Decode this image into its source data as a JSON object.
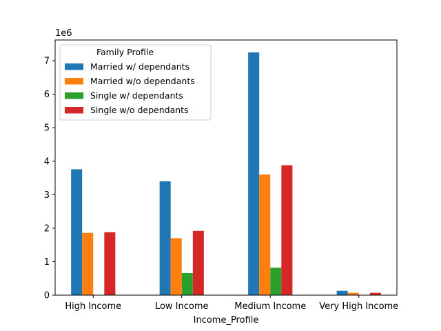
{
  "chart_data": {
    "type": "bar",
    "title": "",
    "xlabel": "Income_Profile",
    "ylabel": "",
    "y_scale_label": "1e6",
    "ylim": [
      0,
      7.62
    ],
    "yticks": [
      0,
      1,
      2,
      3,
      4,
      5,
      6,
      7
    ],
    "grid": false,
    "categories": [
      "High Income",
      "Low Income",
      "Medium Income",
      "Very High Income"
    ],
    "legend": {
      "title": "Family Profile",
      "placement": "upper-left"
    },
    "series": [
      {
        "name": "Married w/ dependants",
        "color": "#1f77b4",
        "values": [
          3.76,
          3.4,
          7.25,
          0.13
        ]
      },
      {
        "name": "Married w/o dependants",
        "color": "#ff7f0e",
        "values": [
          1.86,
          1.7,
          3.6,
          0.07
        ]
      },
      {
        "name": "Single w/ dependants",
        "color": "#2ca02c",
        "values": [
          0.0,
          0.66,
          0.82,
          0.0
        ]
      },
      {
        "name": "Single w/o dependants",
        "color": "#d62728",
        "values": [
          1.88,
          1.92,
          3.88,
          0.07
        ]
      }
    ]
  }
}
